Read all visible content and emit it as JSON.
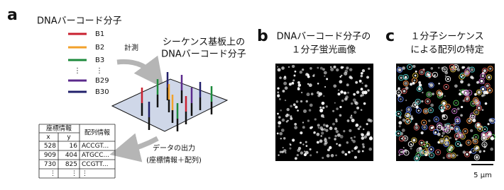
{
  "panel_a": {
    "label": "a",
    "legend_title": "DNAバーコード分子",
    "legend": [
      {
        "name": "B1",
        "color": "#c8202f"
      },
      {
        "name": "B2",
        "color": "#f2a12b"
      },
      {
        "name": "B3",
        "color": "#1d8a3c"
      },
      {
        "name": "B29",
        "color": "#5b2a8c"
      },
      {
        "name": "B30",
        "color": "#22206b"
      }
    ],
    "legend_ellipsis": [
      "⋮",
      "⋮"
    ],
    "measure_label": "計測",
    "substrate_title": [
      "シーケンス基板上の",
      "DNAバーコード分子"
    ],
    "output_label": [
      "データの出力",
      "(座標情報＋配列)"
    ],
    "table": {
      "header": [
        "座標情報",
        "配列情報"
      ],
      "subheader": [
        "x",
        "y"
      ],
      "rows": [
        [
          528,
          16,
          "ACCGT..."
        ],
        [
          909,
          404,
          "ATGCC..."
        ],
        [
          730,
          825,
          "CCGTT..."
        ],
        [
          "⋮",
          "⋮",
          "⋮"
        ]
      ]
    }
  },
  "panel_b": {
    "label": "b",
    "title": [
      "DNAバーコード分子の",
      "１分子蛍光画像"
    ]
  },
  "panel_c": {
    "label": "c",
    "title": [
      "１分子シーケンス",
      "による配列の特定"
    ],
    "scale_bar": "5 μm"
  }
}
